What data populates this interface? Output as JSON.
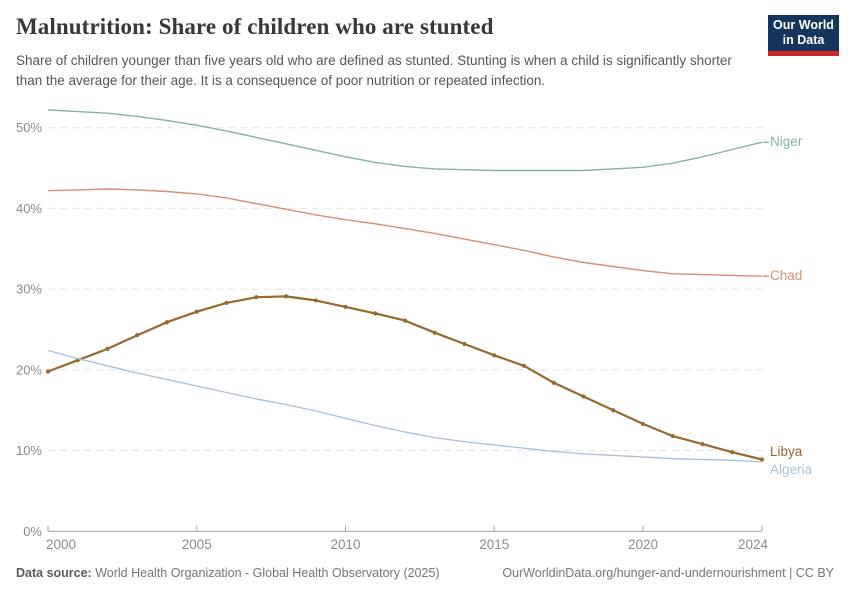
{
  "header": {
    "title": "Malnutrition: Share of children who are stunted",
    "subtitle": "Share of children younger than five years old who are defined as stunted. Stunting is when a child is significantly shorter than the average for their age. It is a consequence of poor nutrition or repeated infection.",
    "logo": {
      "line1": "Our World",
      "line2": "in Data",
      "bg_color": "#16355e",
      "accent_color": "#cd2a20"
    }
  },
  "chart_data": {
    "type": "line",
    "title": "Malnutrition: Share of children who are stunted",
    "xlabel": "",
    "ylabel": "",
    "x": [
      2000,
      2001,
      2002,
      2003,
      2004,
      2005,
      2006,
      2007,
      2008,
      2009,
      2010,
      2011,
      2012,
      2013,
      2014,
      2015,
      2016,
      2017,
      2018,
      2019,
      2020,
      2021,
      2022,
      2023,
      2024
    ],
    "series": [
      {
        "name": "Niger",
        "color": "#85b2a3",
        "marker": false,
        "connector": true,
        "label_dy": 0,
        "values": [
          52.2,
          52.0,
          51.8,
          51.4,
          50.9,
          50.3,
          49.6,
          48.8,
          48.0,
          47.2,
          46.4,
          45.7,
          45.2,
          44.9,
          44.8,
          44.7,
          44.7,
          44.7,
          44.7,
          44.9,
          45.1,
          45.6,
          46.4,
          47.3,
          48.2
        ]
      },
      {
        "name": "Chad",
        "color": "#d78d77",
        "marker": false,
        "connector": true,
        "label_dy": 0,
        "values": [
          42.2,
          42.3,
          42.4,
          42.3,
          42.1,
          41.8,
          41.3,
          40.6,
          39.9,
          39.2,
          38.6,
          38.1,
          37.5,
          36.9,
          36.2,
          35.5,
          34.8,
          34.0,
          33.3,
          32.8,
          32.3,
          31.9,
          31.8,
          31.7,
          31.6
        ]
      },
      {
        "name": "Libya",
        "color": "#96692f",
        "marker": true,
        "connector": false,
        "label_dy": -7.5,
        "values": [
          19.8,
          21.2,
          22.6,
          24.3,
          25.9,
          27.2,
          28.3,
          29.0,
          29.1,
          28.6,
          27.8,
          27.0,
          26.1,
          24.6,
          23.2,
          21.8,
          20.5,
          18.4,
          16.7,
          15.0,
          13.3,
          11.8,
          10.8,
          9.8,
          8.9
        ]
      },
      {
        "name": "Algeria",
        "color": "#a9c3de",
        "marker": false,
        "connector": false,
        "label_dy": 8,
        "values": [
          22.4,
          21.4,
          20.5,
          19.6,
          18.8,
          18.0,
          17.2,
          16.4,
          15.7,
          14.9,
          14.0,
          13.1,
          12.3,
          11.6,
          11.1,
          10.7,
          10.3,
          9.9,
          9.6,
          9.4,
          9.2,
          9.0,
          8.9,
          8.8,
          8.6
        ]
      }
    ],
    "ylim": [
      0,
      50
    ],
    "yticks": [
      0,
      10,
      20,
      30,
      40,
      50
    ],
    "ytick_suffix": "%",
    "xticks": [
      2000,
      2005,
      2010,
      2015,
      2020,
      2024
    ],
    "grid": "horizontal-dashed",
    "grid_color": "#e2e2e2",
    "axis_color": "#a3a3a3",
    "tick_label_color": "#8c8c8c",
    "legend_position": "right-end-labels"
  },
  "footer": {
    "datasource_label": "Data source:",
    "datasource_text": " World Health Organization - Global Health Observatory (2025)",
    "link_text": "OurWorldinData.org/hunger-and-undernourishment",
    "license_separator": " | ",
    "license": "CC BY"
  }
}
